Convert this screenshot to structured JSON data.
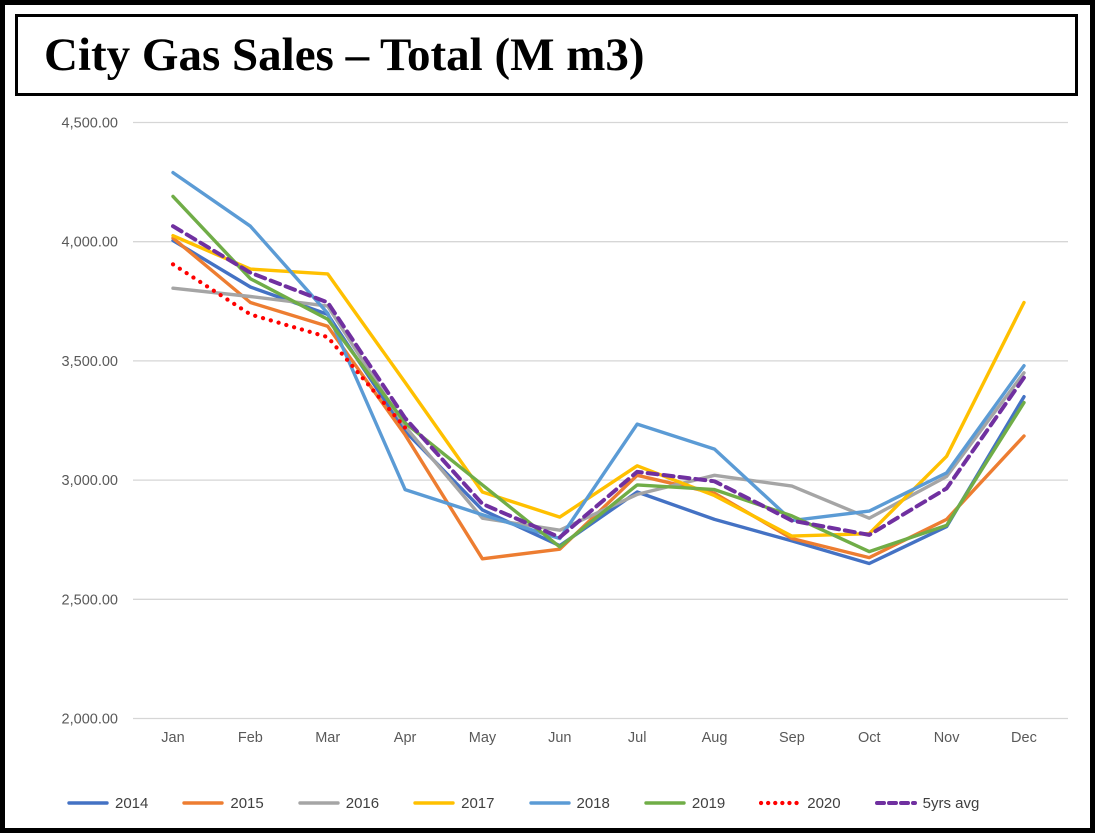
{
  "title": "City Gas Sales – Total (M m3)",
  "chart_data": {
    "type": "line",
    "title": "City Gas Sales – Total (M m3)",
    "categories": [
      "Jan",
      "Feb",
      "Mar",
      "Apr",
      "May",
      "Jun",
      "Jul",
      "Aug",
      "Sep",
      "Oct",
      "Nov",
      "Dec"
    ],
    "y_ticks": [
      "4,500.00",
      "4,000.00",
      "3,500.00",
      "3,000.00",
      "2,500.00",
      "2,000.00"
    ],
    "y_tick_values": [
      4500,
      4000,
      3500,
      3000,
      2500,
      2000
    ],
    "ylim": [
      2000,
      4500
    ],
    "grid": "horizontal",
    "gridline_color": "#d6d6d6",
    "axis_label_color": "#595959",
    "legend_position": "bottom",
    "series": [
      {
        "name": "2014",
        "color": "#4472C4",
        "style": "solid",
        "values": [
          4005,
          3810,
          3695,
          3205,
          2875,
          2725,
          2950,
          2835,
          2745,
          2650,
          2805,
          3350
        ]
      },
      {
        "name": "2015",
        "color": "#ED7D31",
        "style": "solid",
        "values": [
          4015,
          3745,
          3645,
          3190,
          2670,
          2710,
          3020,
          2945,
          2755,
          2675,
          2835,
          3185
        ]
      },
      {
        "name": "2016",
        "color": "#A5A5A5",
        "style": "solid",
        "values": [
          3805,
          3770,
          3730,
          3225,
          2840,
          2790,
          2940,
          3020,
          2975,
          2840,
          3015,
          3450
        ]
      },
      {
        "name": "2017",
        "color": "#FFC000",
        "style": "solid",
        "values": [
          4025,
          3885,
          3865,
          3410,
          2950,
          2845,
          3060,
          2935,
          2765,
          2775,
          3100,
          3745
        ]
      },
      {
        "name": "2018",
        "color": "#5B9BD5",
        "style": "solid",
        "values": [
          4290,
          4065,
          3700,
          2960,
          2855,
          2755,
          3235,
          3130,
          2830,
          2870,
          3030,
          3480
        ]
      },
      {
        "name": "2019",
        "color": "#70AD47",
        "style": "solid",
        "values": [
          4190,
          3845,
          3675,
          3240,
          2980,
          2720,
          2980,
          2960,
          2850,
          2700,
          2810,
          3325
        ]
      },
      {
        "name": "2020",
        "color": "#FF0000",
        "style": "dotted",
        "values": [
          3905,
          3695,
          3600,
          3220,
          null,
          null,
          null,
          null,
          null,
          null,
          null,
          null
        ]
      },
      {
        "name": "5yrs avg",
        "color": "#7030A0",
        "style": "dashed",
        "values": [
          4065,
          3870,
          3745,
          3260,
          2900,
          2760,
          3035,
          2995,
          2830,
          2770,
          2965,
          3430
        ]
      }
    ]
  }
}
